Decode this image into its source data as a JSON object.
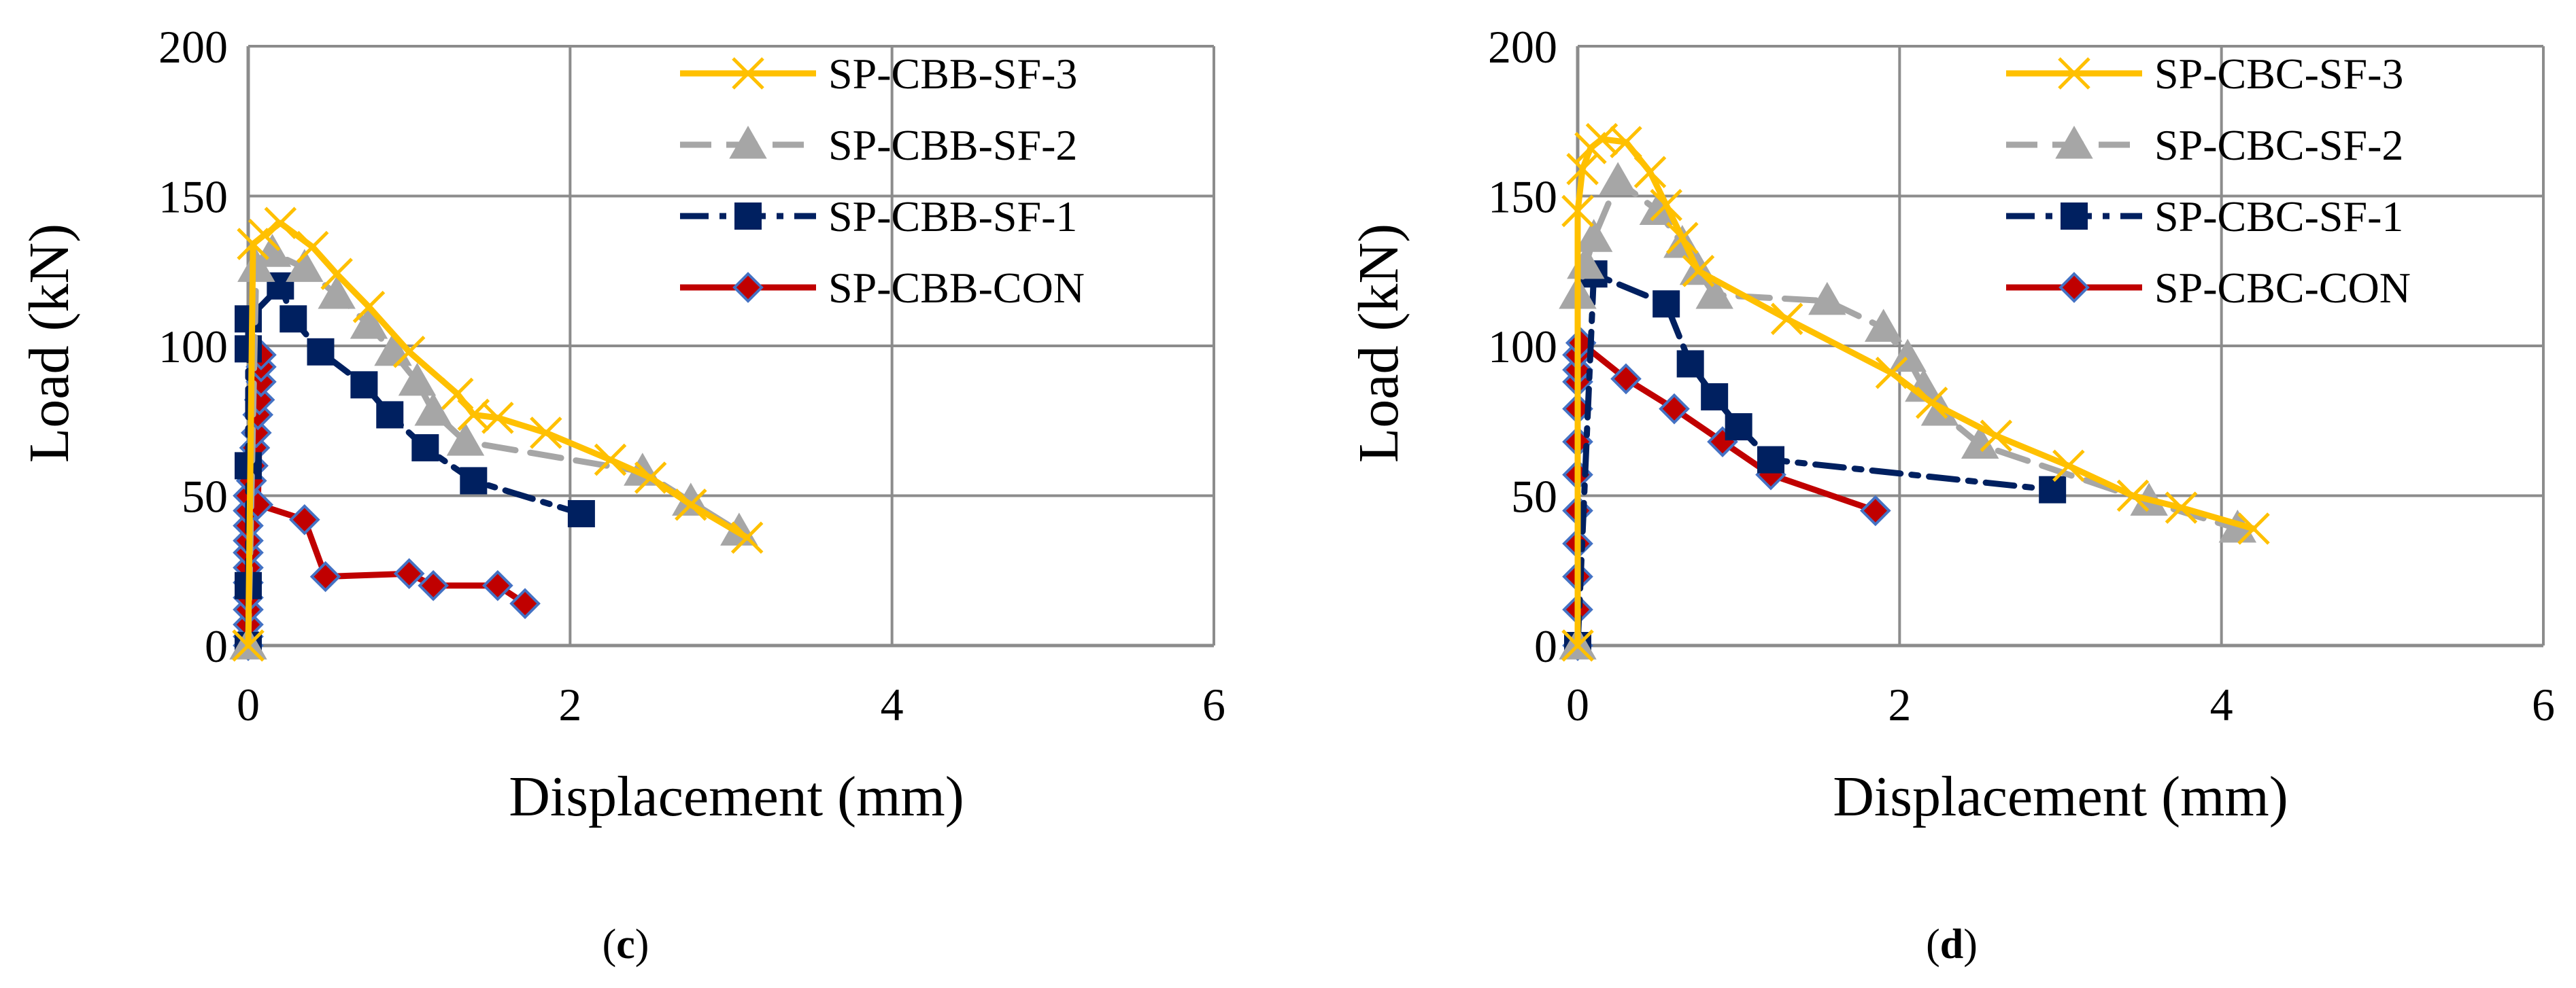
{
  "chart_data": [
    {
      "id": "c",
      "type": "line",
      "caption": {
        "open": "(",
        "letter": "c",
        "close": ")"
      },
      "xlabel": "Displacement (mm)",
      "ylabel": "Load (kN)",
      "xlim": [
        0,
        6
      ],
      "ylim": [
        0,
        200
      ],
      "xticks": [
        0,
        2,
        4,
        6
      ],
      "yticks": [
        0,
        50,
        100,
        150,
        200
      ],
      "grid": true,
      "legend_position": "top-right",
      "series": [
        {
          "name": "SP-CBB-SF-3",
          "color": "#FFC000",
          "dash": "solid",
          "marker": "x",
          "x": [
            0,
            0.03,
            0.1,
            0.2,
            0.4,
            0.55,
            0.75,
            1.0,
            1.3,
            1.4,
            1.55,
            1.85,
            2.25,
            2.5,
            2.75,
            3.1
          ],
          "y": [
            0,
            134,
            137,
            141,
            133,
            124,
            113,
            98,
            84,
            77,
            76,
            71,
            62,
            56,
            47,
            36
          ]
        },
        {
          "name": "SP-CBB-SF-2",
          "color": "#A6A6A6",
          "dash": "dashed",
          "marker": "triangle",
          "x": [
            0,
            0.05,
            0.15,
            0.35,
            0.55,
            0.75,
            0.9,
            1.05,
            1.15,
            1.35,
            2.45,
            2.75,
            3.05
          ],
          "y": [
            0,
            126,
            131,
            126,
            117,
            107,
            98,
            88,
            78,
            68,
            58,
            48,
            38
          ]
        },
        {
          "name": "SP-CBB-SF-1",
          "color": "#002060",
          "dash": "dashdot",
          "marker": "square",
          "x": [
            0,
            0,
            0,
            0,
            0,
            0.2,
            0.28,
            0.45,
            0.72,
            0.88,
            1.1,
            1.4,
            2.07
          ],
          "y": [
            0,
            20,
            60,
            99,
            109,
            120,
            109,
            98,
            87,
            77,
            66,
            55,
            44
          ]
        },
        {
          "name": "SP-CBB-CON",
          "color": "#C00000",
          "dash": "solid",
          "marker": "diamond",
          "x": [
            0,
            0,
            0,
            0,
            0,
            0,
            0,
            0,
            0,
            0,
            0,
            0,
            0.02,
            0.03,
            0.04,
            0.05,
            0.06,
            0.07,
            0.08,
            0.08,
            0.08,
            0.06,
            0.35,
            0.48,
            1.0,
            1.15,
            1.55,
            1.72
          ],
          "y": [
            0,
            3,
            7,
            12,
            16,
            21,
            26,
            31,
            35,
            40,
            45,
            50,
            55,
            60,
            66,
            71,
            77,
            82,
            88,
            93,
            97,
            47,
            42,
            23,
            24,
            20,
            20,
            14
          ]
        }
      ]
    },
    {
      "id": "d",
      "type": "line",
      "caption": {
        "open": "(",
        "letter": "d",
        "close": ")"
      },
      "xlabel": "Displacement (mm)",
      "ylabel": "Load (kN)",
      "xlim": [
        0,
        6
      ],
      "ylim": [
        0,
        200
      ],
      "xticks": [
        0,
        2,
        4,
        6
      ],
      "yticks": [
        0,
        50,
        100,
        150,
        200
      ],
      "grid": true,
      "legend_position": "top-right",
      "series": [
        {
          "name": "SP-CBC-SF-3",
          "color": "#FFC000",
          "dash": "solid",
          "marker": "x",
          "x": [
            0,
            0,
            0.03,
            0.08,
            0.15,
            0.3,
            0.45,
            0.55,
            0.65,
            0.75,
            1.3,
            1.95,
            2.2,
            2.6,
            3.05,
            3.45,
            3.75,
            4.2
          ],
          "y": [
            0,
            145,
            159,
            166,
            169,
            168,
            158,
            147,
            136,
            125,
            109,
            91,
            81,
            70,
            60,
            50,
            46,
            39
          ]
        },
        {
          "name": "SP-CBC-SF-2",
          "color": "#A6A6A6",
          "dash": "dashed",
          "marker": "triangle",
          "x": [
            0,
            0,
            0.05,
            0.1,
            0.25,
            0.5,
            0.65,
            0.75,
            0.85,
            1.55,
            1.9,
            2.05,
            2.15,
            2.25,
            2.5,
            3.55,
            4.1
          ],
          "y": [
            0,
            117,
            127,
            136,
            155,
            145,
            134,
            125,
            117,
            115,
            106,
            96,
            86,
            78,
            67,
            48,
            39
          ]
        },
        {
          "name": "SP-CBC-SF-1",
          "color": "#002060",
          "dash": "dashdot",
          "marker": "square",
          "x": [
            0,
            0.1,
            0.55,
            0.7,
            0.85,
            1.0,
            1.2,
            2.95
          ],
          "y": [
            0,
            124,
            114,
            94,
            83,
            73,
            62,
            52
          ]
        },
        {
          "name": "SP-CBC-CON",
          "color": "#C00000",
          "dash": "solid",
          "marker": "diamond",
          "x": [
            0,
            0,
            0,
            0,
            0,
            0,
            0,
            0,
            0,
            0,
            0,
            0.02,
            0.3,
            0.6,
            0.9,
            1.2,
            1.85
          ],
          "y": [
            0,
            12,
            23,
            34,
            45,
            57,
            68,
            79,
            88,
            92,
            97,
            101,
            89,
            79,
            68,
            57,
            45
          ]
        }
      ]
    }
  ]
}
